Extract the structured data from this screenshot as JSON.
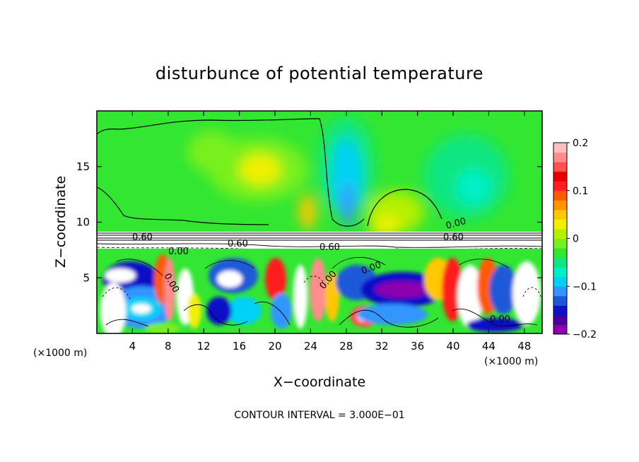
{
  "chart_data": {
    "type": "heatmap",
    "title": "disturbunce of potential temperature",
    "xlabel": "X−coordinate",
    "ylabel": "Z−coordinate",
    "x_unit_left": "(×1000 m)",
    "x_unit_right": "(×1000 m)",
    "xlim": [
      0,
      50
    ],
    "ylim": [
      0,
      20
    ],
    "xticks": [
      4,
      8,
      12,
      16,
      20,
      24,
      28,
      32,
      36,
      40,
      44,
      48
    ],
    "yticks": [
      5,
      10,
      15
    ],
    "colorbar": {
      "range": [
        -0.2,
        0.2
      ],
      "ticks": [
        {
          "value": 0.2,
          "label": "0.2"
        },
        {
          "value": 0.1,
          "label": "0.1"
        },
        {
          "value": 0,
          "label": "0"
        },
        {
          "value": -0.1,
          "label": "−0.1"
        },
        {
          "value": -0.2,
          "label": "−0.2"
        }
      ],
      "colors": [
        "#8a00b0",
        "#4a00a0",
        "#1010c8",
        "#1e5ad8",
        "#3296ff",
        "#00d2f5",
        "#00f0c8",
        "#10e680",
        "#32e632",
        "#78f01e",
        "#b4f000",
        "#f0f000",
        "#ffc800",
        "#ff9600",
        "#ff5a00",
        "#ff1e1e",
        "#e60000",
        "#ff5050",
        "#ff8c8c",
        "#ffbebe"
      ]
    },
    "contour_labels": [
      "0.60",
      "0.60",
      "0.60",
      "0.60",
      "0.00",
      "0.00",
      "0.00",
      "0.00",
      "0.00",
      "0.00"
    ],
    "footer": "CONTOUR INTERVAL = 3.000E−01"
  }
}
